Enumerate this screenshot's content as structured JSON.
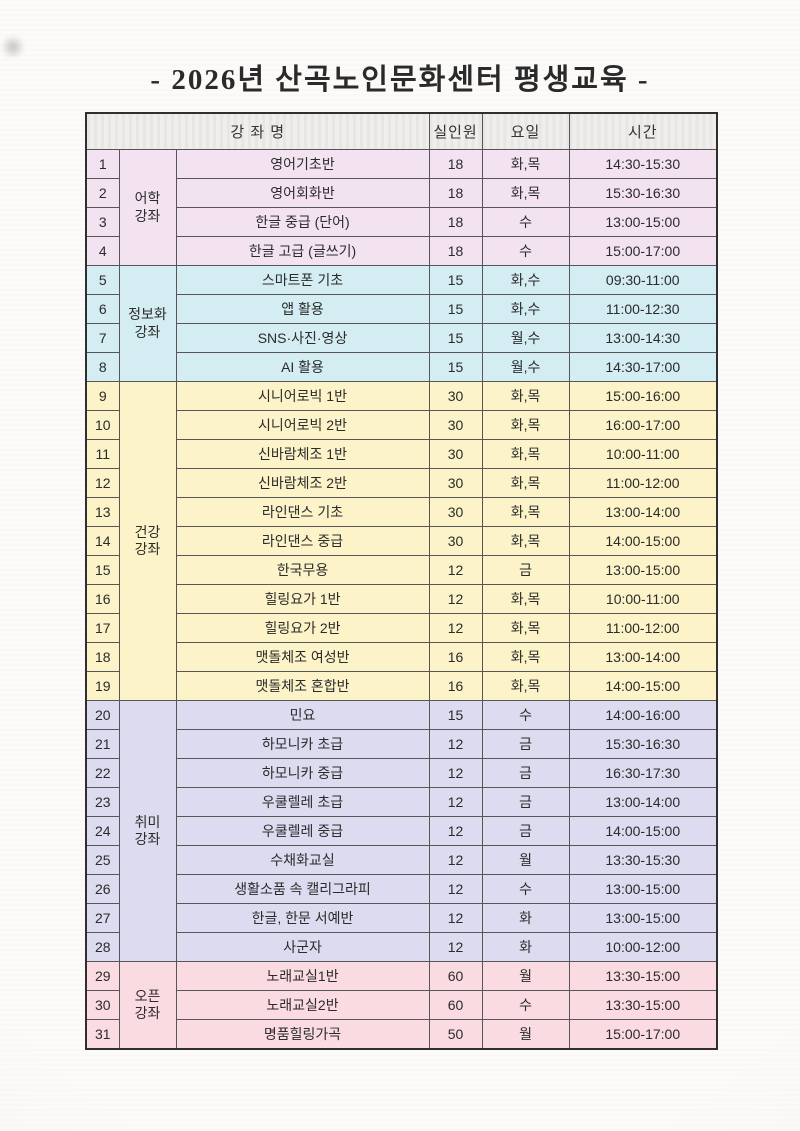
{
  "doc": {
    "title": "- 2026년 산곡노인문화센터 평생교육 -"
  },
  "table": {
    "headers": {
      "course": "강 좌 명",
      "enrolled": "실인원",
      "day": "요일",
      "time": "시간"
    },
    "sections": [
      {
        "category": "어학\n강좌",
        "color": "#f3e3f1",
        "rows": [
          {
            "no": "1",
            "course": "영어기초반",
            "enrolled": "18",
            "day": "화,목",
            "time": "14:30-15:30"
          },
          {
            "no": "2",
            "course": "영어회화반",
            "enrolled": "18",
            "day": "화,목",
            "time": "15:30-16:30"
          },
          {
            "no": "3",
            "course": "한글 중급 (단어)",
            "enrolled": "18",
            "day": "수",
            "time": "13:00-15:00"
          },
          {
            "no": "4",
            "course": "한글 고급 (글쓰기)",
            "enrolled": "18",
            "day": "수",
            "time": "15:00-17:00"
          }
        ]
      },
      {
        "category": "정보화\n강좌",
        "color": "#d3edf2",
        "rows": [
          {
            "no": "5",
            "course": "스마트폰 기초",
            "enrolled": "15",
            "day": "화,수",
            "time": "09:30-11:00"
          },
          {
            "no": "6",
            "course": "앱 활용",
            "enrolled": "15",
            "day": "화,수",
            "time": "11:00-12:30"
          },
          {
            "no": "7",
            "course": "SNS·사진·영상",
            "enrolled": "15",
            "day": "월,수",
            "time": "13:00-14:30"
          },
          {
            "no": "8",
            "course": "AI 활용",
            "enrolled": "15",
            "day": "월,수",
            "time": "14:30-17:00"
          }
        ]
      },
      {
        "category": "건강\n강좌",
        "color": "#fcf3c8",
        "rows": [
          {
            "no": "9",
            "course": "시니어로빅 1반",
            "enrolled": "30",
            "day": "화,목",
            "time": "15:00-16:00"
          },
          {
            "no": "10",
            "course": "시니어로빅 2반",
            "enrolled": "30",
            "day": "화,목",
            "time": "16:00-17:00"
          },
          {
            "no": "11",
            "course": "신바람체조 1반",
            "enrolled": "30",
            "day": "화,목",
            "time": "10:00-11:00"
          },
          {
            "no": "12",
            "course": "신바람체조 2반",
            "enrolled": "30",
            "day": "화,목",
            "time": "11:00-12:00"
          },
          {
            "no": "13",
            "course": "라인댄스 기초",
            "enrolled": "30",
            "day": "화,목",
            "time": "13:00-14:00"
          },
          {
            "no": "14",
            "course": "라인댄스 중급",
            "enrolled": "30",
            "day": "화,목",
            "time": "14:00-15:00"
          },
          {
            "no": "15",
            "course": "한국무용",
            "enrolled": "12",
            "day": "금",
            "time": "13:00-15:00"
          },
          {
            "no": "16",
            "course": "힐링요가 1반",
            "enrolled": "12",
            "day": "화,목",
            "time": "10:00-11:00"
          },
          {
            "no": "17",
            "course": "힐링요가 2반",
            "enrolled": "12",
            "day": "화,목",
            "time": "11:00-12:00"
          },
          {
            "no": "18",
            "course": "맷돌체조 여성반",
            "enrolled": "16",
            "day": "화,목",
            "time": "13:00-14:00"
          },
          {
            "no": "19",
            "course": "맷돌체조 혼합반",
            "enrolled": "16",
            "day": "화,목",
            "time": "14:00-15:00"
          }
        ]
      },
      {
        "category": "취미\n강좌",
        "color": "#dcdbf0",
        "rows": [
          {
            "no": "20",
            "course": "민요",
            "enrolled": "15",
            "day": "수",
            "time": "14:00-16:00"
          },
          {
            "no": "21",
            "course": "하모니카 초급",
            "enrolled": "12",
            "day": "금",
            "time": "15:30-16:30"
          },
          {
            "no": "22",
            "course": "하모니카 중급",
            "enrolled": "12",
            "day": "금",
            "time": "16:30-17:30"
          },
          {
            "no": "23",
            "course": "우쿨렐레 초급",
            "enrolled": "12",
            "day": "금",
            "time": "13:00-14:00"
          },
          {
            "no": "24",
            "course": "우쿨렐레 중급",
            "enrolled": "12",
            "day": "금",
            "time": "14:00-15:00"
          },
          {
            "no": "25",
            "course": "수채화교실",
            "enrolled": "12",
            "day": "월",
            "time": "13:30-15:30"
          },
          {
            "no": "26",
            "course": "생활소품 속 캘리그라피",
            "enrolled": "12",
            "day": "수",
            "time": "13:00-15:00"
          },
          {
            "no": "27",
            "course": "한글, 한문 서예반",
            "enrolled": "12",
            "day": "화",
            "time": "13:00-15:00"
          },
          {
            "no": "28",
            "course": "사군자",
            "enrolled": "12",
            "day": "화",
            "time": "10:00-12:00"
          }
        ]
      },
      {
        "category": "오픈\n강좌",
        "color": "#fbdbe2",
        "rows": [
          {
            "no": "29",
            "course": "노래교실1반",
            "enrolled": "60",
            "day": "월",
            "time": "13:30-15:00"
          },
          {
            "no": "30",
            "course": "노래교실2반",
            "enrolled": "60",
            "day": "수",
            "time": "13:30-15:00"
          },
          {
            "no": "31",
            "course": "명품힐링가곡",
            "enrolled": "50",
            "day": "월",
            "time": "15:00-17:00"
          }
        ]
      }
    ]
  }
}
